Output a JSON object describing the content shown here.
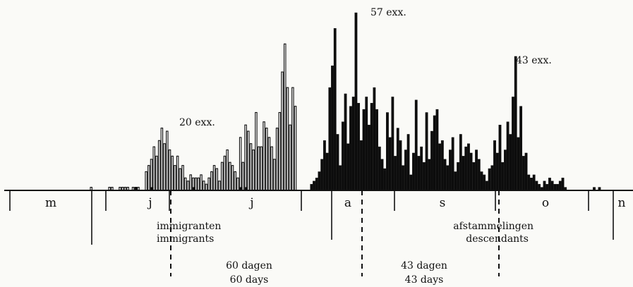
{
  "chart_data": {
    "type": "bar",
    "title": "",
    "xlabel": "",
    "ylabel": "",
    "months": [
      "m",
      "j",
      "j",
      "a",
      "s",
      "o",
      "n"
    ],
    "peak_labels": [
      "20 exx.",
      "57 exx.",
      "43 exx."
    ],
    "phase_labels": [
      {
        "nl": "immigranten",
        "en": "immigrants"
      },
      {
        "nl": "afstammelingen",
        "en": "descendants"
      }
    ],
    "duration_labels": [
      {
        "nl": "60 dagen",
        "en": "60 days"
      },
      {
        "nl": "43 dagen",
        "en": "43 days"
      }
    ],
    "series": [
      {
        "style": "open",
        "values": [
          1,
          0,
          0,
          0,
          0,
          0,
          0,
          1,
          1,
          0,
          0,
          1,
          1,
          1,
          1,
          0,
          1,
          1,
          1,
          0,
          0,
          6,
          8,
          10,
          14,
          11,
          16,
          20,
          15,
          19,
          13,
          11,
          8,
          11,
          7,
          8,
          4,
          3,
          5,
          4,
          4,
          4,
          5,
          3,
          2,
          4,
          6,
          8,
          7,
          3,
          9,
          11,
          13,
          9,
          8,
          6,
          4,
          17,
          9,
          21,
          19,
          15,
          13,
          25,
          14,
          14,
          22,
          20,
          17,
          14,
          10,
          20,
          25,
          38,
          47,
          33,
          21,
          33,
          27
        ]
      },
      {
        "style": "filled",
        "values": [
          0,
          0,
          0,
          0,
          0,
          0,
          0,
          0,
          0,
          0,
          0,
          0,
          0,
          0,
          0,
          0,
          0,
          1,
          0,
          0,
          0,
          0,
          0,
          1,
          0,
          0,
          0,
          0,
          0,
          0,
          0,
          0,
          0,
          0,
          0,
          0,
          0,
          0,
          0,
          1,
          0,
          0,
          0,
          0,
          0,
          0,
          0,
          0,
          0,
          0,
          0,
          0,
          0,
          0,
          0,
          0,
          0,
          1,
          0,
          1,
          0,
          0,
          0,
          0,
          0,
          0,
          0,
          0,
          0,
          0,
          0,
          0,
          0,
          0,
          0,
          0,
          0,
          0,
          0,
          0,
          0,
          0,
          0,
          0,
          2,
          3,
          4,
          6,
          10,
          16,
          12,
          33,
          40,
          52,
          18,
          8,
          22,
          31,
          15,
          27,
          30,
          57,
          28,
          16,
          26,
          30,
          21,
          28,
          33,
          26,
          14,
          10,
          7,
          25,
          17,
          30,
          11,
          20,
          16,
          8,
          13,
          18,
          5,
          12,
          29,
          11,
          14,
          9,
          25,
          10,
          19,
          24,
          26,
          15,
          16,
          10,
          8,
          13,
          17,
          6,
          9,
          18,
          11,
          14,
          15,
          12,
          9,
          13,
          10,
          6,
          5,
          3,
          7,
          8,
          16,
          12,
          21,
          9,
          13,
          22,
          18,
          30,
          43,
          17,
          27,
          11,
          12,
          5,
          4,
          5,
          3,
          2,
          1,
          3,
          2,
          4,
          3,
          2,
          2,
          3,
          4,
          1,
          0,
          0,
          0,
          0,
          0,
          0,
          0,
          0,
          0,
          0,
          1,
          0,
          1
        ]
      }
    ]
  }
}
